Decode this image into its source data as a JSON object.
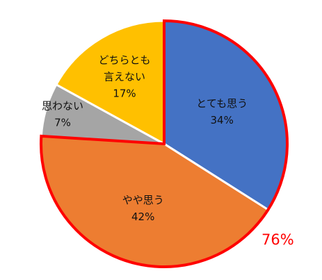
{
  "chart_data": {
    "type": "pie",
    "categories": [
      "とても思う",
      "やや思う",
      "思わない",
      "どちらとも言えない"
    ],
    "values": [
      34,
      42,
      7,
      17
    ],
    "value_labels": [
      "34%",
      "42%",
      "7%",
      "17%"
    ],
    "colors": [
      "#4472C4",
      "#ED7D31",
      "#A5A5A5",
      "#FFC000"
    ],
    "label_lines": [
      [
        "とても思う",
        "34%"
      ],
      [
        "やや思う",
        "42%"
      ],
      [
        "思わない",
        "7%"
      ],
      [
        "どちらとも",
        "言えない",
        "17%"
      ]
    ],
    "start_angle_deg": 0,
    "direction": "clockwise",
    "highlight": {
      "slices": [
        0,
        1
      ],
      "outline_color": "#ff0000",
      "label": "76%",
      "label_color": "#ff0000"
    }
  }
}
